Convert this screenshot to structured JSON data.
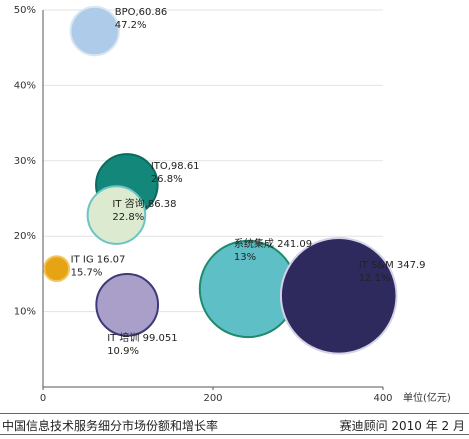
{
  "chart_data": {
    "type": "scatter",
    "title": "",
    "xlabel": "单位(亿元)",
    "ylabel": "",
    "xlim": [
      0,
      400
    ],
    "ylim": [
      0,
      50
    ],
    "x_ticks": [
      "0",
      "200",
      "400"
    ],
    "y_ticks": [
      "10%",
      "20%",
      "30%",
      "40%",
      "50%"
    ],
    "grid": "horizontal",
    "points": [
      {
        "name": "BPO",
        "x": 60.86,
        "y": 47.2,
        "color": "#aecbe9",
        "border": "#d8e6f3",
        "label_line1": "BPO,60.86",
        "label_line2": "47.2%"
      },
      {
        "name": "ITO",
        "x": 98.61,
        "y": 26.8,
        "color": "#13877a",
        "border": "#0b6b60",
        "label_line1": "ITO,98.61",
        "label_line2": "26.8%"
      },
      {
        "name": "IT 咨询",
        "x": 86.38,
        "y": 22.8,
        "color": "#dceacf",
        "border": "#6cc3c6",
        "label_line1": "IT 咨询,86.38",
        "label_line2": "22.8%"
      },
      {
        "name": "IT IG",
        "x": 16.07,
        "y": 15.7,
        "color": "#e6a414",
        "border": "#f2c560",
        "label_line1": "IT IG 16.07",
        "label_line2": "15.7%"
      },
      {
        "name": "IT 培训",
        "x": 99.051,
        "y": 10.9,
        "color": "#a99fc9",
        "border": "#3e3a7a",
        "label_line1": "IT 培训 99.051",
        "label_line2": "10.9%"
      },
      {
        "name": "系统集成",
        "x": 241.09,
        "y": 13,
        "color": "#5fbfc6",
        "border": "#1f8a6e",
        "label_line1": "系统集成  241.09",
        "label_line2": "13%"
      },
      {
        "name": "IT S&M",
        "x": 347.9,
        "y": 12.1,
        "color": "#2e2a5e",
        "border": "#d4d2e6",
        "label_line1": "IT S&M  347.9",
        "label_line2": "12.1%"
      }
    ]
  },
  "caption": {
    "left": "中国信息技术服务细分市场份额和增长率",
    "right": "赛迪顾问  2010 年 2 月"
  }
}
